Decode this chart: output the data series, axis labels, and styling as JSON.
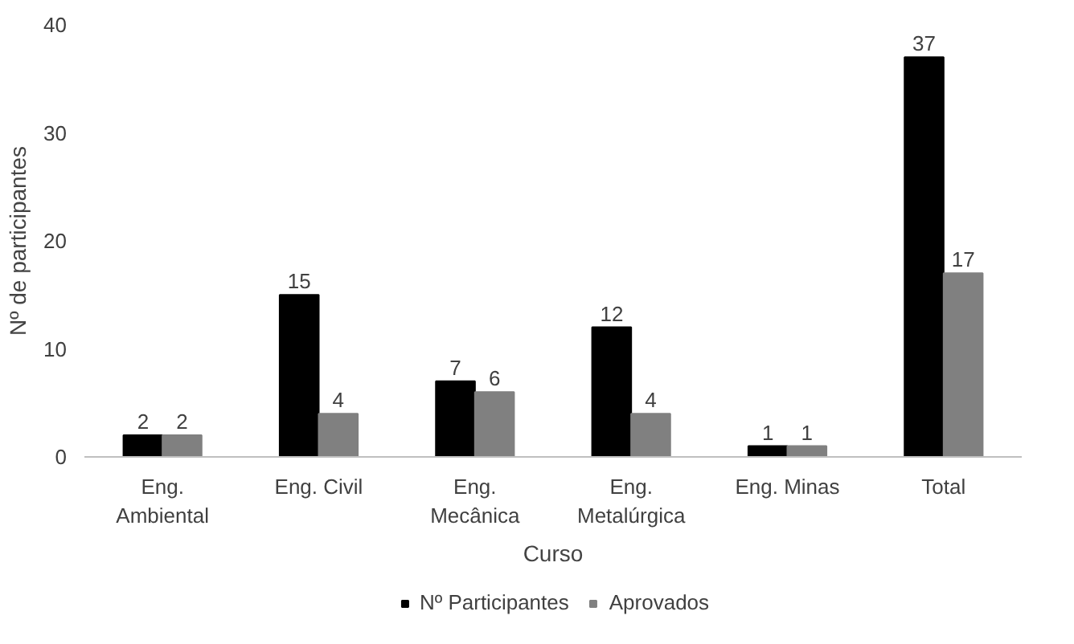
{
  "chart_data": {
    "type": "bar",
    "xlabel": "Curso",
    "ylabel": "Nº de participantes",
    "categories": [
      "Eng.\nAmbiental",
      "Eng. Civil",
      "Eng.\nMecânica",
      "Eng.\nMetalúrgica",
      "Eng. Minas",
      "Total"
    ],
    "series": [
      {
        "name": "Nº Participantes",
        "color": "#000000",
        "values": [
          2,
          15,
          7,
          12,
          1,
          37
        ]
      },
      {
        "name": "Aprovados",
        "color": "#808080",
        "values": [
          2,
          4,
          6,
          4,
          1,
          17
        ]
      }
    ],
    "ylim": [
      0,
      40
    ],
    "yticks": [
      0,
      10,
      20,
      30,
      40
    ],
    "grid": false,
    "legend": "bottom",
    "data_labels": true
  }
}
